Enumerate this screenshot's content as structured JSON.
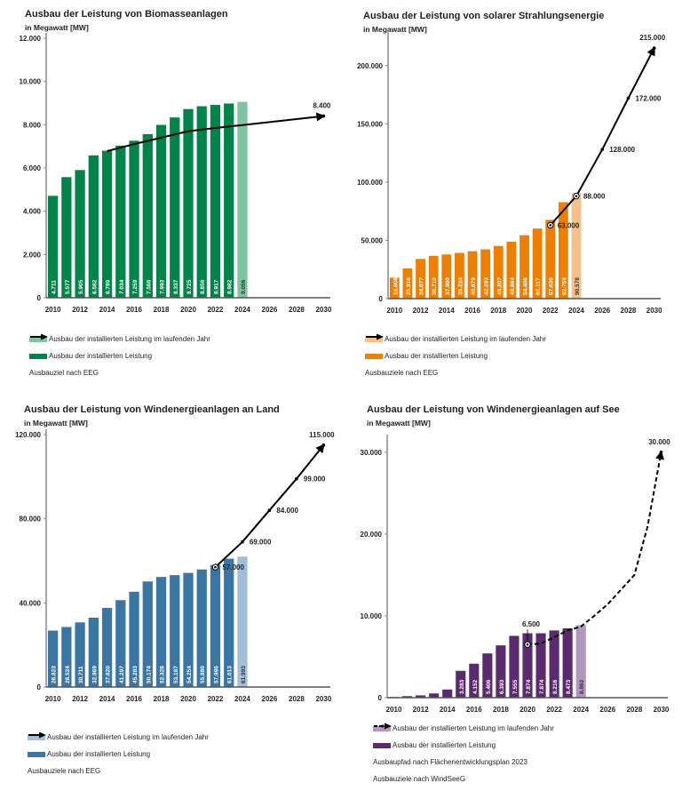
{
  "chart_data": [
    {
      "id": "biomass",
      "type": "bar",
      "title": "Ausbau der Leistung von Biomasseanlagen",
      "subtitle": "in Megawatt [MW]",
      "xlabel": "",
      "ylabel": "in Megawatt [MW]",
      "ylim": [
        0,
        12000
      ],
      "yticks": [
        0,
        2000,
        4000,
        6000,
        8000,
        10000,
        12000
      ],
      "ytick_labels": [
        "0",
        "2.000",
        "4.000",
        "6.000",
        "8.000",
        "10.000",
        "12.000"
      ],
      "xticks": [
        "2010",
        "2012",
        "2014",
        "2016",
        "2018",
        "2020",
        "2022",
        "2024",
        "2026",
        "2028",
        "2030"
      ],
      "years": [
        2010,
        2011,
        2012,
        2013,
        2014,
        2015,
        2016,
        2017,
        2018,
        2019,
        2020,
        2021,
        2022,
        2023,
        2024
      ],
      "values": [
        4711,
        5577,
        5905,
        6582,
        6799,
        7034,
        7259,
        7566,
        7993,
        8337,
        8725,
        8856,
        8917,
        8982,
        9056
      ],
      "value_labels": [
        "4.711",
        "5.577",
        "5.905",
        "6.582",
        "6.799",
        "7.034",
        "7.259",
        "7.566",
        "7.993",
        "8.337",
        "8.725",
        "8.856",
        "8.917",
        "8.982",
        "9.056"
      ],
      "current_year": 2024,
      "colors": {
        "bar": "#00844a",
        "current": "#7ec4a0",
        "label": "#ffffff",
        "current_label": "#333333"
      },
      "target_line": {
        "style": "solid",
        "points": [
          [
            2014,
            6780
          ],
          [
            2016,
            7100
          ],
          [
            2018,
            7400
          ],
          [
            2020,
            7700
          ],
          [
            2022,
            7850
          ],
          [
            2024,
            7980
          ],
          [
            2030,
            8400
          ]
        ],
        "labeled_points": [
          {
            "year": 2030,
            "value": 8400,
            "label": "8.400",
            "marker": "dot"
          }
        ]
      },
      "legend": [
        {
          "kind": "swatch",
          "color": "#7ec4a0",
          "label": "Ausbau der installierten Leistung im laufenden Jahr"
        },
        {
          "kind": "swatch",
          "color": "#00844a",
          "label": "Ausbau der installierten Leistung"
        },
        {
          "kind": "arrow",
          "label": "Ausbauziel nach EEG"
        }
      ]
    },
    {
      "id": "solar",
      "type": "bar",
      "title": "Ausbau der Leistung von solarer Strahlungsenergie",
      "subtitle": "in Megawatt [MW]",
      "xlabel": "",
      "ylabel": "in Megawatt [MW]",
      "ylim": [
        0,
        225000
      ],
      "yticks": [
        0,
        50000,
        100000,
        150000,
        200000
      ],
      "ytick_labels": [
        "0",
        "50.000",
        "100.000",
        "150.000",
        "200.000"
      ],
      "xticks": [
        "2010",
        "2012",
        "2014",
        "2016",
        "2018",
        "2020",
        "2022",
        "2024",
        "2026",
        "2028",
        "2030"
      ],
      "years": [
        2010,
        2011,
        2012,
        2013,
        2014,
        2015,
        2016,
        2017,
        2018,
        2019,
        2020,
        2021,
        2022,
        2023,
        2024
      ],
      "values": [
        18006,
        25916,
        34077,
        36710,
        37900,
        39224,
        40679,
        42293,
        45207,
        48864,
        54406,
        60117,
        67630,
        82759,
        90578
      ],
      "value_labels": [
        "18.006",
        "25.916",
        "34.077",
        "36.710",
        "37.900",
        "39.224",
        "40.679",
        "42.293",
        "45.207",
        "48.864",
        "54.406",
        "60.117",
        "67.630",
        "82.759",
        "90.578"
      ],
      "current_year": 2024,
      "colors": {
        "bar": "#ee7f00",
        "current": "#f6c088",
        "label": "#ffffff",
        "current_label": "#333333"
      },
      "target_line": {
        "style": "solid",
        "points": [
          [
            2022,
            63000
          ],
          [
            2024,
            88000
          ],
          [
            2026,
            128000
          ],
          [
            2028,
            172000
          ],
          [
            2030,
            215000
          ]
        ],
        "labeled_points": [
          {
            "year": 2022,
            "value": 63000,
            "label": "63.000",
            "marker": "ring"
          },
          {
            "year": 2024,
            "value": 88000,
            "label": "88.000",
            "marker": "ring"
          },
          {
            "year": 2026,
            "value": 128000,
            "label": "128.000",
            "marker": "dot"
          },
          {
            "year": 2028,
            "value": 172000,
            "label": "172.000",
            "marker": "dot"
          },
          {
            "year": 2030,
            "value": 215000,
            "label": "215.000",
            "marker": "dot"
          }
        ]
      },
      "legend": [
        {
          "kind": "swatch",
          "color": "#f6c088",
          "label": "Ausbau der installierten Leistung im laufenden Jahr"
        },
        {
          "kind": "swatch",
          "color": "#ee7f00",
          "label": "Ausbau der installierten Leistung"
        },
        {
          "kind": "arrow",
          "label": "Ausbauziele nach EEG"
        }
      ]
    },
    {
      "id": "wind-onshore",
      "type": "bar",
      "title": "Ausbau der Leistung von Windenergieanlagen an Land",
      "subtitle": "in Megawatt [MW]",
      "xlabel": "",
      "ylabel": "in Megawatt [MW]",
      "ylim": [
        0,
        120000
      ],
      "yticks": [
        0,
        40000,
        80000,
        120000
      ],
      "ytick_labels": [
        "0",
        "40.000",
        "80.000",
        "120.000"
      ],
      "xticks": [
        "2010",
        "2012",
        "2014",
        "2016",
        "2018",
        "2020",
        "2022",
        "2024",
        "2026",
        "2028",
        "2030"
      ],
      "years": [
        2010,
        2011,
        2012,
        2013,
        2014,
        2015,
        2016,
        2017,
        2018,
        2019,
        2020,
        2021,
        2022,
        2023,
        2024
      ],
      "values": [
        26823,
        28524,
        30711,
        32969,
        37620,
        41297,
        45283,
        50174,
        52328,
        53187,
        54254,
        55880,
        57986,
        61013,
        61993
      ],
      "value_labels": [
        "26.823",
        "28.524",
        "30.711",
        "32.969",
        "37.620",
        "41.297",
        "45.283",
        "50.174",
        "52.328",
        "53.187",
        "54.254",
        "55.880",
        "57.986",
        "61.013",
        "61.993"
      ],
      "current_year": 2024,
      "colors": {
        "bar": "#3a76a4",
        "current": "#a3bfd8",
        "label": "#ffffff",
        "current_label": "#333333"
      },
      "target_line": {
        "style": "solid",
        "points": [
          [
            2022,
            57000
          ],
          [
            2024,
            69000
          ],
          [
            2026,
            84000
          ],
          [
            2028,
            99000
          ],
          [
            2030,
            115000
          ]
        ],
        "labeled_points": [
          {
            "year": 2022,
            "value": 57000,
            "label": "57.000",
            "marker": "ring"
          },
          {
            "year": 2024,
            "value": 69000,
            "label": "69.000",
            "marker": "dot"
          },
          {
            "year": 2026,
            "value": 84000,
            "label": "84.000",
            "marker": "dot"
          },
          {
            "year": 2028,
            "value": 99000,
            "label": "99.000",
            "marker": "dot"
          },
          {
            "year": 2030,
            "value": 115000,
            "label": "115.000",
            "marker": "dot"
          }
        ]
      },
      "legend": [
        {
          "kind": "swatch",
          "color": "#a3bfd8",
          "label": "Ausbau der installierten Leistung im laufenden Jahr"
        },
        {
          "kind": "swatch",
          "color": "#3a76a4",
          "label": "Ausbau der installierten Leistung"
        },
        {
          "kind": "arrow",
          "label": "Ausbauziele nach EEG"
        }
      ]
    },
    {
      "id": "wind-offshore",
      "type": "bar",
      "title": "Ausbau der Leistung von Windenergieanlagen auf See",
      "subtitle": "in Megawatt [MW]",
      "xlabel": "",
      "ylabel": "in Megawatt [MW]",
      "ylim": [
        0,
        31500
      ],
      "yticks": [
        0,
        10000,
        20000,
        30000
      ],
      "ytick_labels": [
        "0",
        "10.000",
        "20.000",
        "30.000"
      ],
      "xticks": [
        "2010",
        "2012",
        "2014",
        "2016",
        "2018",
        "2020",
        "2022",
        "2024",
        "2026",
        "2028",
        "2030"
      ],
      "years": [
        2010,
        2011,
        2012,
        2013,
        2014,
        2015,
        2016,
        2017,
        2018,
        2019,
        2020,
        2021,
        2022,
        2023,
        2024
      ],
      "values": [
        80,
        190,
        280,
        520,
        1000,
        3283,
        4152,
        5406,
        6393,
        7555,
        7874,
        7874,
        8216,
        8473,
        8862
      ],
      "value_labels": [
        "",
        "",
        "",
        "",
        "",
        "3.283",
        "4.152",
        "5.406",
        "6.393",
        "7.555",
        "7.874",
        "7.874",
        "8.216",
        "8.473",
        "8.862"
      ],
      "current_year": 2024,
      "colors": {
        "bar": "#5b2a6e",
        "current": "#b396c0",
        "label": "#ffffff",
        "current_label": "#333333"
      },
      "target_line": {
        "style": "dashed",
        "points": [
          [
            2020,
            6500
          ],
          [
            2021,
            6600
          ],
          [
            2022,
            7400
          ],
          [
            2023,
            8200
          ],
          [
            2024,
            8700
          ],
          [
            2025,
            10000
          ],
          [
            2026,
            11400
          ],
          [
            2027,
            13200
          ],
          [
            2028,
            15000
          ],
          [
            2029,
            21000
          ],
          [
            2030,
            30000
          ]
        ],
        "labeled_points": [
          {
            "year": 2020,
            "value": 6500,
            "label": "6.500",
            "marker": "ring"
          },
          {
            "year": 2030,
            "value": 30000,
            "label": "30.000",
            "marker": "dot"
          }
        ]
      },
      "legend": [
        {
          "kind": "swatch",
          "color": "#b396c0",
          "label": "Ausbau der installierten Leistung im laufenden Jahr"
        },
        {
          "kind": "swatch",
          "color": "#5b2a6e",
          "label": "Ausbau der installierten Leistung"
        },
        {
          "kind": "dashed-arrow",
          "label": "Ausbaupfad nach Flächenentwicklungsplan 2023"
        },
        {
          "kind": "dot",
          "label": "Ausbauziele nach WindSeeG"
        }
      ]
    }
  ]
}
